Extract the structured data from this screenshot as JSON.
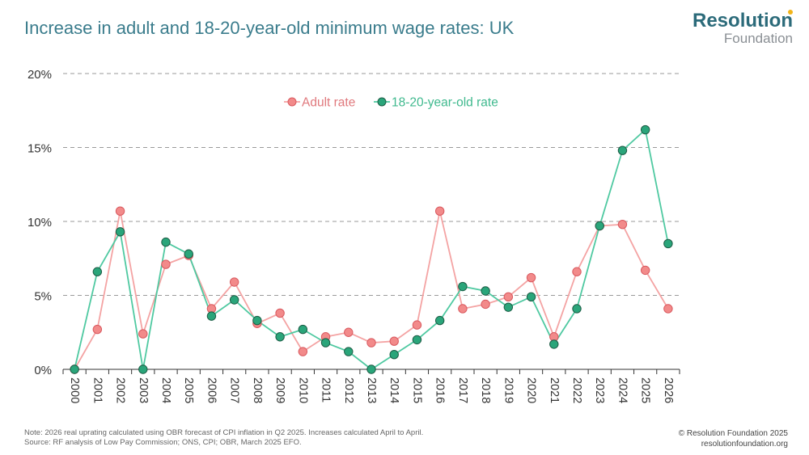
{
  "header": {
    "title": "Increase in adult and 18-20-year-old minimum wage rates: UK"
  },
  "logo": {
    "line1": "Resolution",
    "line2": "Foundation"
  },
  "footer": {
    "note": "Note: 2026 real uprating calculated using OBR forecast of CPI inflation in Q2 2025. Increases calculated April to April.",
    "source": "Source: RF analysis of Low Pay Commission; ONS, CPI; OBR, March 2025 EFO.",
    "copyright": "© Resolution Foundation 2025",
    "website": "resolutionfoundation.org"
  },
  "colors": {
    "adult_fill": "#f28a8a",
    "adult_line": "#f4a3a3",
    "adult_stroke": "#d9595f",
    "youth_fill": "#2aa57a",
    "youth_line": "#4fc9a1",
    "youth_stroke": "#1d5c45",
    "grid": "#9a9a9a",
    "axis": "#333333",
    "tick_text": "#333333",
    "adult_legend_text": "#e0797d",
    "youth_legend_text": "#3fb98e"
  },
  "chart_data": {
    "type": "line",
    "title": "Increase in adult and 18-20-year-old minimum wage rates: UK",
    "xlabel": "",
    "ylabel": "",
    "ylim": [
      0,
      20
    ],
    "yticks": [
      0,
      5,
      10,
      15,
      20
    ],
    "ytick_labels": [
      "0%",
      "5%",
      "10%",
      "15%",
      "20%"
    ],
    "grid": true,
    "legend_position": "top-center",
    "categories": [
      "2000",
      "2001",
      "2002",
      "2003",
      "2004",
      "2005",
      "2006",
      "2007",
      "2008",
      "2009",
      "2010",
      "2011",
      "2012",
      "2013",
      "2014",
      "2015",
      "2016",
      "2017",
      "2018",
      "2019",
      "2020",
      "2021",
      "2022",
      "2023",
      "2024",
      "2025",
      "2026"
    ],
    "series": [
      {
        "name": "Adult rate",
        "values": [
          0,
          2.7,
          10.7,
          2.4,
          7.1,
          7.7,
          4.1,
          5.9,
          3.1,
          3.8,
          1.2,
          2.2,
          2.5,
          1.8,
          1.9,
          3.0,
          10.7,
          4.1,
          4.4,
          4.9,
          6.2,
          2.2,
          6.6,
          9.7,
          9.8,
          6.7,
          4.1
        ]
      },
      {
        "name": "18-20-year-old rate",
        "values": [
          0,
          6.6,
          9.3,
          0,
          8.6,
          7.8,
          3.6,
          4.7,
          3.3,
          2.2,
          2.7,
          1.8,
          1.2,
          0,
          1.0,
          2.0,
          3.3,
          5.6,
          5.3,
          4.2,
          4.9,
          1.7,
          4.1,
          9.7,
          14.8,
          16.2,
          8.5
        ]
      }
    ]
  }
}
